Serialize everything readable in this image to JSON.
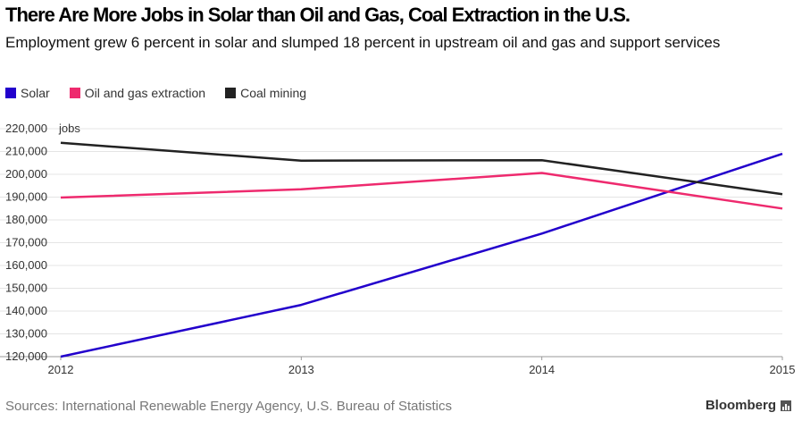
{
  "chart_data": {
    "type": "line",
    "title": "There Are More Jobs in Solar than Oil and Gas, Coal Extraction in the U.S.",
    "subtitle": "Employment grew 6 percent in solar and slumped 18 percent in upstream oil and gas and support services",
    "x": [
      "2012",
      "2013",
      "2014",
      "2015"
    ],
    "ylabel": "jobs",
    "ylim": [
      120000,
      220000
    ],
    "yticks": [
      "120,000",
      "130,000",
      "140,000",
      "150,000",
      "160,000",
      "170,000",
      "180,000",
      "190,000",
      "200,000",
      "210,000",
      "220,000"
    ],
    "grid": true,
    "legend_position": "top-left",
    "series": [
      {
        "name": "Solar",
        "color": "#2200cc",
        "values": [
          120000,
          142700,
          174000,
          209000
        ]
      },
      {
        "name": "Oil and gas extraction",
        "color": "#ee2a6e",
        "values": [
          189800,
          193400,
          200600,
          185000
        ]
      },
      {
        "name": "Coal mining",
        "color": "#222222",
        "values": [
          213800,
          206000,
          206200,
          191300
        ]
      }
    ],
    "source": "Sources: International Renewable Energy Agency, U.S. Bureau of Statistics",
    "brand": "Bloomberg"
  }
}
